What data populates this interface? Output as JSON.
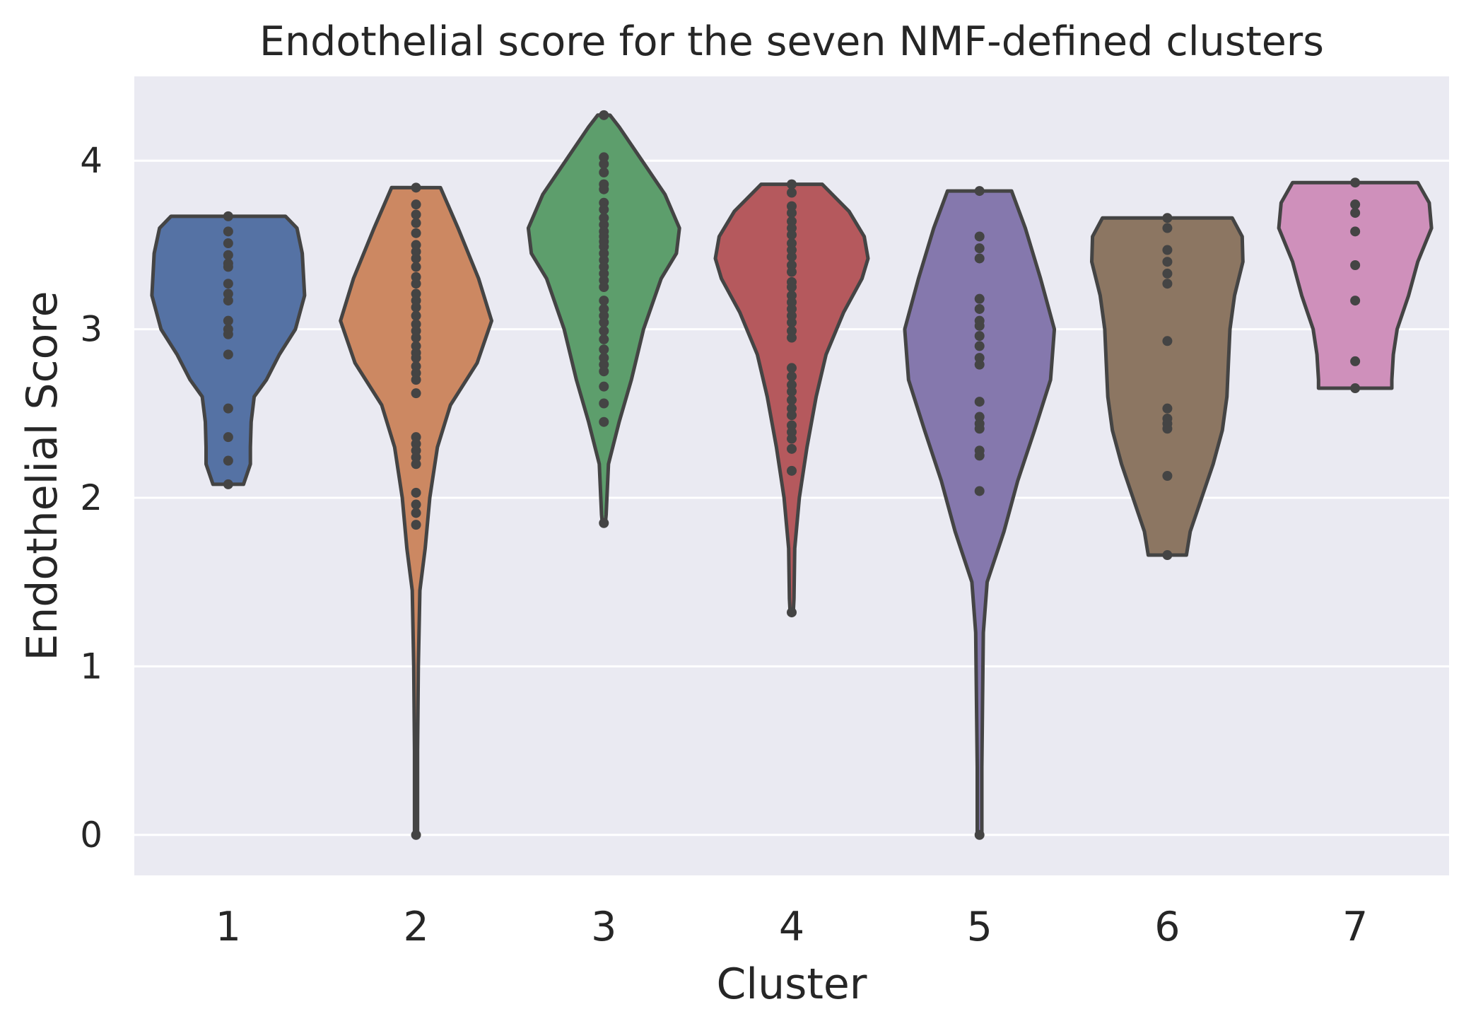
{
  "chart_data": {
    "type": "violin",
    "title": "Endothelial score for the seven NMF-defined clusters",
    "xlabel": "Cluster",
    "ylabel": "Endothelial Score",
    "categories": [
      "1",
      "2",
      "3",
      "4",
      "5",
      "6",
      "7"
    ],
    "yticks": [
      "0",
      "1",
      "2",
      "3",
      "4"
    ],
    "ylim": [
      -0.24,
      4.5
    ],
    "grid": true,
    "background": "#eaeaf2",
    "outline_color": "#444444",
    "point_color": "#444444",
    "series": [
      {
        "category": "1",
        "color": "#5572a4",
        "min": 2.08,
        "max": 3.67,
        "profile": [
          [
            3.67,
            0.75
          ],
          [
            3.6,
            0.9
          ],
          [
            3.45,
            0.97
          ],
          [
            3.2,
            1.0
          ],
          [
            3.0,
            0.88
          ],
          [
            2.85,
            0.67
          ],
          [
            2.7,
            0.5
          ],
          [
            2.6,
            0.34
          ],
          [
            2.45,
            0.3
          ],
          [
            2.3,
            0.29
          ],
          [
            2.2,
            0.29
          ],
          [
            2.08,
            0.2
          ]
        ],
        "points": [
          3.67,
          3.58,
          3.51,
          3.44,
          3.39,
          3.37,
          3.27,
          3.21,
          3.17,
          3.05,
          3.0,
          2.97,
          2.85,
          2.53,
          2.36,
          2.22,
          2.08
        ]
      },
      {
        "category": "2",
        "color": "#cc8862",
        "min": 0.0,
        "max": 3.84,
        "profile": [
          [
            3.84,
            0.32
          ],
          [
            3.6,
            0.55
          ],
          [
            3.3,
            0.82
          ],
          [
            3.05,
            0.99
          ],
          [
            2.8,
            0.8
          ],
          [
            2.55,
            0.45
          ],
          [
            2.3,
            0.28
          ],
          [
            2.0,
            0.18
          ],
          [
            1.7,
            0.12
          ],
          [
            1.45,
            0.05
          ],
          [
            1.0,
            0.03
          ],
          [
            0.5,
            0.02
          ],
          [
            0.1,
            0.02
          ],
          [
            0.0,
            0.02
          ]
        ],
        "points": [
          3.84,
          3.74,
          3.68,
          3.63,
          3.57,
          3.5,
          3.46,
          3.42,
          3.37,
          3.31,
          3.27,
          3.21,
          3.17,
          3.13,
          3.08,
          3.03,
          2.99,
          2.95,
          2.9,
          2.86,
          2.83,
          2.78,
          2.74,
          2.7,
          2.62,
          2.36,
          2.32,
          2.28,
          2.24,
          2.2,
          2.03,
          1.96,
          1.91,
          1.84,
          0.0
        ]
      },
      {
        "category": "3",
        "color": "#5d9e6c",
        "min": 1.85,
        "max": 4.27,
        "profile": [
          [
            4.27,
            0.08
          ],
          [
            4.2,
            0.2
          ],
          [
            4.0,
            0.5
          ],
          [
            3.8,
            0.8
          ],
          [
            3.6,
            0.99
          ],
          [
            3.45,
            0.95
          ],
          [
            3.3,
            0.75
          ],
          [
            3.0,
            0.52
          ],
          [
            2.7,
            0.36
          ],
          [
            2.45,
            0.2
          ],
          [
            2.2,
            0.06
          ],
          [
            1.9,
            0.03
          ],
          [
            1.85,
            0.02
          ]
        ],
        "points": [
          4.27,
          4.02,
          3.98,
          3.93,
          3.86,
          3.83,
          3.75,
          3.71,
          3.66,
          3.62,
          3.58,
          3.55,
          3.52,
          3.49,
          3.45,
          3.41,
          3.37,
          3.33,
          3.29,
          3.25,
          3.17,
          3.12,
          3.08,
          3.04,
          2.99,
          2.94,
          2.88,
          2.83,
          2.79,
          2.75,
          2.66,
          2.56,
          2.45,
          1.85
        ]
      },
      {
        "category": "4",
        "color": "#b5595d",
        "min": 1.32,
        "max": 3.86,
        "profile": [
          [
            3.86,
            0.4
          ],
          [
            3.7,
            0.75
          ],
          [
            3.55,
            0.95
          ],
          [
            3.42,
            1.0
          ],
          [
            3.3,
            0.92
          ],
          [
            3.1,
            0.68
          ],
          [
            2.85,
            0.45
          ],
          [
            2.6,
            0.32
          ],
          [
            2.3,
            0.2
          ],
          [
            2.0,
            0.1
          ],
          [
            1.7,
            0.04
          ],
          [
            1.4,
            0.03
          ],
          [
            1.32,
            0.02
          ]
        ],
        "points": [
          3.86,
          3.81,
          3.73,
          3.69,
          3.64,
          3.6,
          3.56,
          3.51,
          3.47,
          3.43,
          3.38,
          3.34,
          3.28,
          3.25,
          3.2,
          3.16,
          3.12,
          3.08,
          3.04,
          2.99,
          2.95,
          2.77,
          2.72,
          2.67,
          2.63,
          2.58,
          2.53,
          2.49,
          2.43,
          2.39,
          2.35,
          2.29,
          2.16,
          1.32
        ]
      },
      {
        "category": "5",
        "color": "#8578ad",
        "min": 0.0,
        "max": 3.82,
        "profile": [
          [
            3.82,
            0.42
          ],
          [
            3.6,
            0.6
          ],
          [
            3.3,
            0.8
          ],
          [
            3.0,
            0.98
          ],
          [
            2.7,
            0.93
          ],
          [
            2.4,
            0.72
          ],
          [
            2.1,
            0.5
          ],
          [
            1.8,
            0.32
          ],
          [
            1.5,
            0.1
          ],
          [
            1.2,
            0.05
          ],
          [
            0.8,
            0.04
          ],
          [
            0.4,
            0.03
          ],
          [
            0.1,
            0.03
          ],
          [
            0.0,
            0.03
          ]
        ],
        "points": [
          3.82,
          3.55,
          3.48,
          3.42,
          3.18,
          3.12,
          3.05,
          3.02,
          2.96,
          2.9,
          2.83,
          2.79,
          2.57,
          2.48,
          2.44,
          2.41,
          2.28,
          2.25,
          2.04,
          0.0
        ]
      },
      {
        "category": "6",
        "color": "#8c7662",
        "min": 1.66,
        "max": 3.66,
        "profile": [
          [
            3.66,
            0.85
          ],
          [
            3.55,
            0.98
          ],
          [
            3.4,
            0.99
          ],
          [
            3.2,
            0.88
          ],
          [
            3.0,
            0.82
          ],
          [
            2.8,
            0.8
          ],
          [
            2.6,
            0.78
          ],
          [
            2.4,
            0.72
          ],
          [
            2.2,
            0.6
          ],
          [
            2.0,
            0.45
          ],
          [
            1.8,
            0.3
          ],
          [
            1.66,
            0.25
          ]
        ],
        "points": [
          3.66,
          3.6,
          3.47,
          3.4,
          3.33,
          3.27,
          2.93,
          2.53,
          2.47,
          2.44,
          2.41,
          2.13,
          1.66
        ]
      },
      {
        "category": "7",
        "color": "#cf90bb",
        "min": 2.65,
        "max": 3.87,
        "profile": [
          [
            3.87,
            0.82
          ],
          [
            3.75,
            0.97
          ],
          [
            3.6,
            1.0
          ],
          [
            3.4,
            0.82
          ],
          [
            3.2,
            0.7
          ],
          [
            3.0,
            0.55
          ],
          [
            2.85,
            0.5
          ],
          [
            2.7,
            0.48
          ],
          [
            2.65,
            0.48
          ]
        ],
        "points": [
          3.87,
          3.74,
          3.69,
          3.58,
          3.38,
          3.17,
          2.81,
          2.65
        ]
      }
    ]
  }
}
